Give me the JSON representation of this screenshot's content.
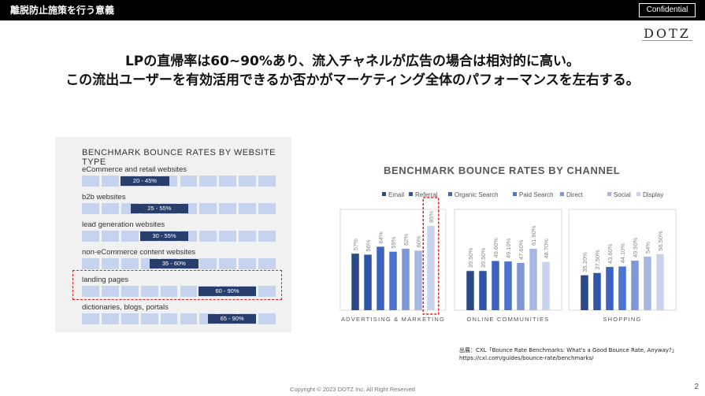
{
  "header": {
    "title": "離脱防止施策を行う意義",
    "confidential_label": "Confidential"
  },
  "logo": {
    "text": "DOTZ",
    "colors": {
      "bar": "#000000",
      "accent": "#e02020"
    }
  },
  "headline": {
    "line1": "LPの直帰率は60~90%あり、流入チャネルが広告の場合は相対的に高い。",
    "line2": "この流出ユーザーを有効活用できるか否かがマーケティング全体のパフォーマンスを左右する。"
  },
  "website_type_chart": {
    "title": "BENCHMARK BOUNCE RATES BY WEBSITE TYPE",
    "scale": {
      "min": 0,
      "max": 100
    },
    "rows": [
      {
        "label": "eCommerce and retail websites",
        "range": "20 - 45%",
        "low": 20,
        "high": 45
      },
      {
        "label": "b2b websites",
        "range": "25 - 55%",
        "low": 25,
        "high": 55
      },
      {
        "label": "lead generation websites",
        "range": "30 - 55%",
        "low": 30,
        "high": 55
      },
      {
        "label": "non-eCommerce content websites",
        "range": "35 - 60%",
        "low": 35,
        "high": 60
      },
      {
        "label": "landing pages",
        "range": "60 - 90%",
        "low": 60,
        "high": 90
      },
      {
        "label": "dictionaries, blogs, portals",
        "range": "65 - 90%",
        "low": 65,
        "high": 90
      }
    ]
  },
  "chart_data": {
    "type": "bar",
    "title": "BENCHMARK BOUNCE RATES BY CHANNEL",
    "groups": [
      "ADVERTISING & MARKETING",
      "ONLINE COMMUNITIES",
      "SHOPPING"
    ],
    "series": [
      {
        "name": "Email",
        "color": "#2b4a85",
        "values": [
          57,
          39.5,
          35.2
        ]
      },
      {
        "name": "Referral",
        "color": "#2f56a6",
        "values": [
          56,
          39.5,
          37.5
        ]
      },
      {
        "name": "Organic Search",
        "color": "#3b63bf",
        "values": [
          64,
          49.6,
          43.6
        ]
      },
      {
        "name": "Paid Search",
        "color": "#4a74cf",
        "values": [
          59,
          49.1,
          44.1
        ]
      },
      {
        "name": "Direct",
        "color": "#7d97d7",
        "values": [
          62,
          47.6,
          49.9
        ]
      },
      {
        "name": "Social",
        "color": "#a6b7e2",
        "values": [
          60,
          61.9,
          54
        ]
      },
      {
        "name": "Display",
        "color": "#c8d3ef",
        "values": [
          85,
          48.7,
          56.5
        ]
      }
    ],
    "labels": [
      [
        "57%",
        "56%",
        "64%",
        "59%",
        "62%",
        "60%",
        "85%"
      ],
      [
        "39.50%",
        "39.50%",
        "49.60%",
        "49.10%",
        "47.60%",
        "61.90%",
        "48.70%"
      ],
      [
        "35.20%",
        "37.50%",
        "43.60%",
        "44.10%",
        "49.90%",
        "54%",
        "56.50%"
      ]
    ],
    "ylim": [
      0,
      100
    ],
    "legend_position": "top",
    "highlight": {
      "group": 0,
      "series": "Display"
    }
  },
  "source": {
    "line1": "出展：CXL「Bounce Rate Benchmarks: What's a Good Bounce Rate, Anyway?」",
    "line2": "https://cxl.com/guides/bounce-rate/benchmarks/"
  },
  "footer": {
    "copyright": "Copyright © 2023 DOTZ Inc. All Right Reserved",
    "page_number": "2"
  }
}
